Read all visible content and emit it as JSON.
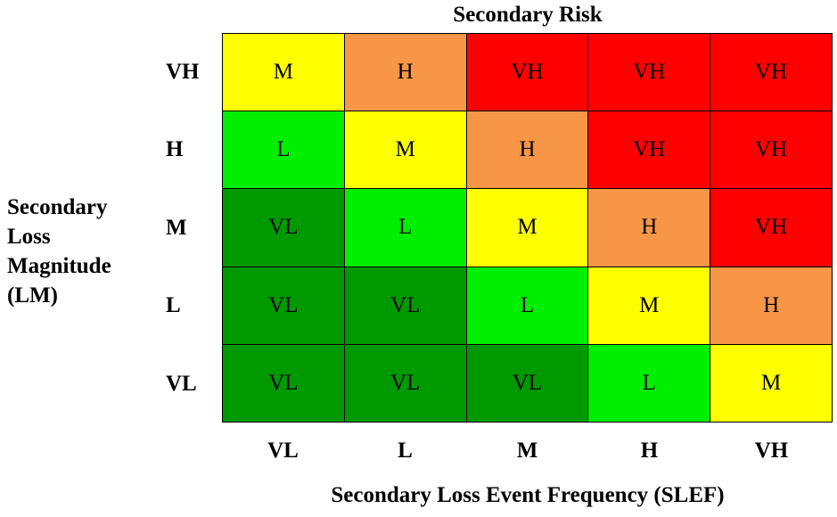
{
  "title": "Secondary Risk",
  "y_axis_label": [
    "Secondary",
    "Loss",
    "Magnitude",
    "(LM)"
  ],
  "x_axis_label": "Secondary Loss Event Frequency (SLEF)",
  "row_labels": [
    "VH",
    "H",
    "M",
    "L",
    "VL"
  ],
  "col_labels": [
    "VL",
    "L",
    "M",
    "H",
    "VH"
  ],
  "colors": {
    "VL": "#009900",
    "L": "#00ee00",
    "M": "#ffff00",
    "H": "#f79646",
    "VH": "#ff0000"
  },
  "cells": [
    [
      "M",
      "H",
      "VH",
      "VH",
      "VH"
    ],
    [
      "L",
      "M",
      "H",
      "VH",
      "VH"
    ],
    [
      "VL",
      "L",
      "M",
      "H",
      "VH"
    ],
    [
      "VL",
      "VL",
      "L",
      "M",
      "H"
    ],
    [
      "VL",
      "VL",
      "VL",
      "L",
      "M"
    ]
  ]
}
